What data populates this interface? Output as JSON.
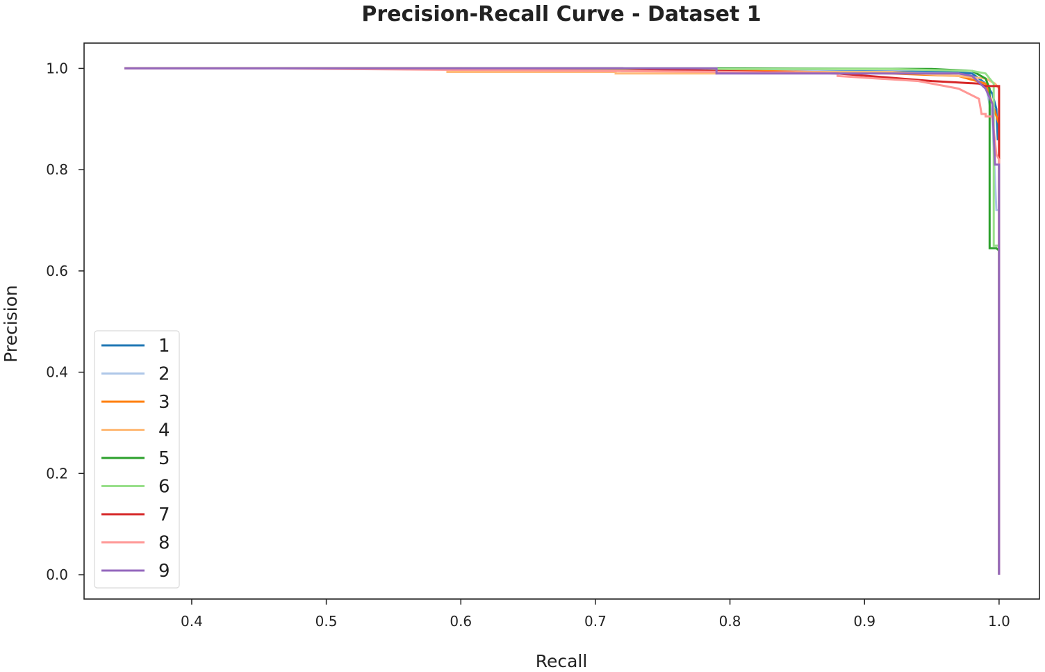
{
  "chart_data": {
    "type": "line",
    "title": "Precision-Recall Curve - Dataset 1",
    "xlabel": "Recall",
    "ylabel": "Precision",
    "xlim": [
      0.32,
      1.03
    ],
    "ylim": [
      -0.048,
      1.05
    ],
    "xticks": [
      "0.4",
      "0.5",
      "0.6",
      "0.7",
      "0.8",
      "0.9",
      "1.0"
    ],
    "yticks": [
      "0.0",
      "0.2",
      "0.4",
      "0.6",
      "0.8",
      "1.0"
    ],
    "legend_position": "lower-left",
    "series": [
      {
        "name": "1",
        "color": "#1f77b4",
        "points": [
          [
            0.36,
            1.0
          ],
          [
            0.72,
            1.0
          ],
          [
            0.72,
            0.995
          ],
          [
            0.85,
            0.995
          ],
          [
            0.96,
            0.993
          ],
          [
            0.98,
            0.99
          ],
          [
            0.99,
            0.97
          ],
          [
            0.995,
            0.95
          ],
          [
            0.998,
            0.92
          ],
          [
            0.999,
            0.86
          ],
          [
            1.0,
            0.86
          ],
          [
            1.0,
            0.0
          ]
        ]
      },
      {
        "name": "2",
        "color": "#aec7e8",
        "points": [
          [
            0.35,
            1.0
          ],
          [
            0.6,
            1.0
          ],
          [
            0.8,
            0.997
          ],
          [
            0.9,
            0.993
          ],
          [
            0.97,
            0.99
          ],
          [
            0.99,
            0.97
          ],
          [
            0.995,
            0.9
          ],
          [
            0.998,
            0.72
          ],
          [
            1.0,
            0.72
          ],
          [
            1.0,
            0.0
          ]
        ]
      },
      {
        "name": "3",
        "color": "#ff7f0e",
        "points": [
          [
            0.35,
            1.0
          ],
          [
            0.6,
            1.0
          ],
          [
            0.8,
            0.996
          ],
          [
            0.92,
            0.99
          ],
          [
            0.97,
            0.985
          ],
          [
            0.99,
            0.97
          ],
          [
            0.995,
            0.93
          ],
          [
            1.0,
            0.89
          ],
          [
            1.0,
            0.0
          ]
        ]
      },
      {
        "name": "4",
        "color": "#ffbb78",
        "points": [
          [
            0.35,
            1.0
          ],
          [
            0.59,
            1.0
          ],
          [
            0.59,
            0.993
          ],
          [
            0.715,
            0.993
          ],
          [
            0.715,
            0.99
          ],
          [
            0.79,
            0.99
          ],
          [
            0.79,
            0.993
          ],
          [
            0.92,
            0.993
          ],
          [
            0.97,
            0.985
          ],
          [
            0.99,
            0.98
          ],
          [
            0.997,
            0.97
          ],
          [
            1.0,
            0.96
          ],
          [
            1.0,
            0.0
          ]
        ]
      },
      {
        "name": "5",
        "color": "#2ca02c",
        "points": [
          [
            0.35,
            1.0
          ],
          [
            0.79,
            1.0
          ],
          [
            0.95,
            0.999
          ],
          [
            0.98,
            0.995
          ],
          [
            0.99,
            0.98
          ],
          [
            0.993,
            0.96
          ],
          [
            0.993,
            0.645
          ],
          [
            0.998,
            0.645
          ],
          [
            1.0,
            0.64
          ],
          [
            1.0,
            0.0
          ]
        ]
      },
      {
        "name": "6",
        "color": "#98df8a",
        "points": [
          [
            0.35,
            1.0
          ],
          [
            0.58,
            1.0
          ],
          [
            0.79,
            0.999
          ],
          [
            0.92,
            0.999
          ],
          [
            0.98,
            0.995
          ],
          [
            0.99,
            0.99
          ],
          [
            0.996,
            0.97
          ],
          [
            0.996,
            0.65
          ],
          [
            1.0,
            0.65
          ],
          [
            1.0,
            0.0
          ]
        ]
      },
      {
        "name": "7",
        "color": "#d62728",
        "points": [
          [
            0.35,
            1.0
          ],
          [
            0.72,
            1.0
          ],
          [
            0.79,
            0.995
          ],
          [
            0.88,
            0.99
          ],
          [
            0.95,
            0.975
          ],
          [
            0.985,
            0.97
          ],
          [
            0.99,
            0.965
          ],
          [
            1.0,
            0.965
          ],
          [
            1.0,
            0.82
          ],
          [
            1.0,
            0.0
          ]
        ]
      },
      {
        "name": "8",
        "color": "#ff9896",
        "points": [
          [
            0.35,
            1.0
          ],
          [
            0.455,
            1.0
          ],
          [
            0.8,
            0.993
          ],
          [
            0.88,
            0.99
          ],
          [
            0.88,
            0.985
          ],
          [
            0.94,
            0.975
          ],
          [
            0.97,
            0.96
          ],
          [
            0.985,
            0.94
          ],
          [
            0.987,
            0.91
          ],
          [
            0.99,
            0.91
          ],
          [
            0.99,
            0.905
          ],
          [
            0.995,
            0.905
          ],
          [
            0.998,
            0.83
          ],
          [
            1.0,
            0.82
          ],
          [
            1.0,
            0.0
          ]
        ]
      },
      {
        "name": "9",
        "color": "#9467bd",
        "points": [
          [
            0.35,
            1.0
          ],
          [
            0.6,
            1.0
          ],
          [
            0.79,
            1.0
          ],
          [
            0.79,
            0.99
          ],
          [
            0.92,
            0.99
          ],
          [
            0.97,
            0.99
          ],
          [
            0.98,
            0.985
          ],
          [
            0.99,
            0.96
          ],
          [
            0.995,
            0.93
          ],
          [
            0.997,
            0.81
          ],
          [
            1.0,
            0.81
          ],
          [
            1.0,
            0.0
          ]
        ]
      }
    ]
  }
}
